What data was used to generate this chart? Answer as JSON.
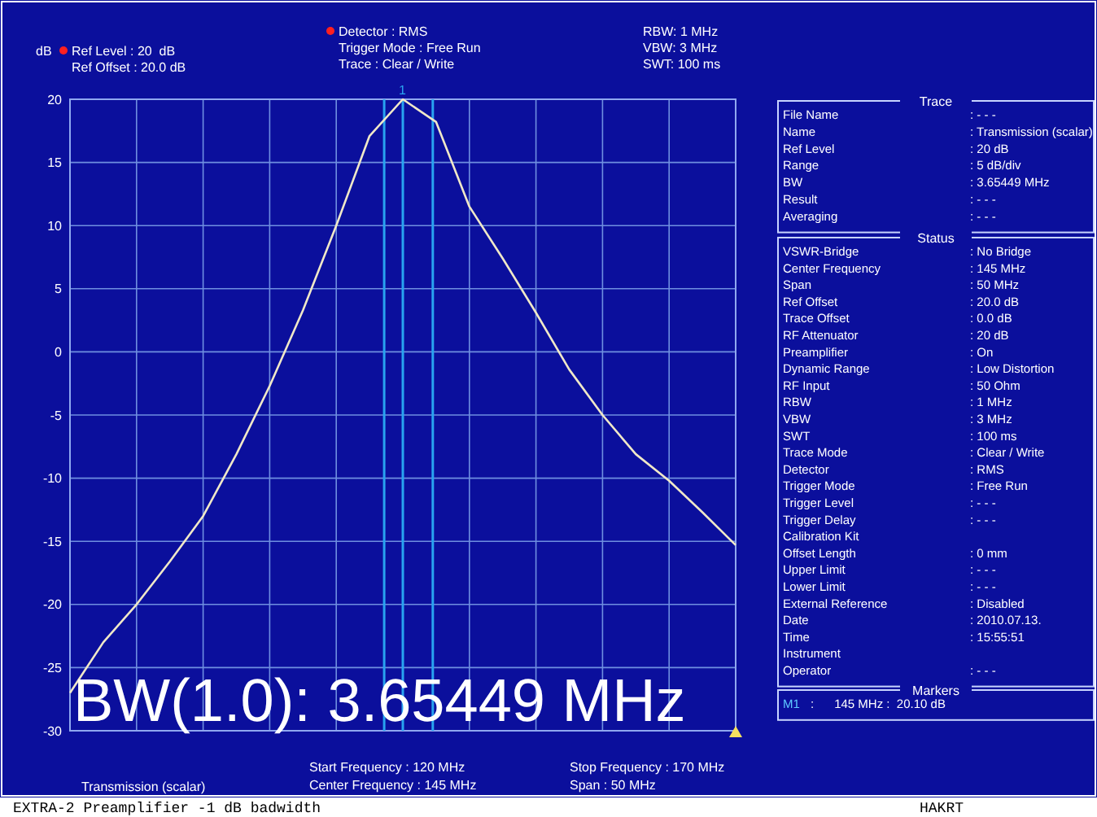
{
  "chart_data": [
    {
      "type": "line",
      "ylabel": "dB",
      "ylim": [
        -30,
        20
      ],
      "categories": [
        null,
        null,
        null,
        null,
        null,
        null,
        null,
        null,
        null,
        null,
        null,
        null,
        null,
        null,
        null,
        null,
        null,
        null,
        null,
        null,
        null
      ],
      "yticks": [
        -30,
        -25,
        -20,
        -15,
        -10,
        -5,
        0,
        5,
        10,
        15,
        20
      ],
      "tick_labels": "y",
      "grid": true,
      "series": [
        {
          "color": "#f0e8c8",
          "values": [
            -27,
            -23,
            -20,
            -16.6,
            -13,
            -8.1,
            -2.7,
            3.3,
            10,
            17.1,
            20,
            18.2,
            11.5,
            7.4,
            3.1,
            -1.4,
            -5,
            -8.1,
            -10.2,
            -12.7,
            -15.3
          ]
        }
      ],
      "annotations": [
        "Ref Level : 20  dB",
        "Ref Offset : 20.0 dB",
        "Detector : RMS",
        "Trigger Mode : Free Run",
        "Trace : Clear / Write",
        "RBW: 1 MHz",
        "VBW: 3 MHz",
        "SWT: 100 ms",
        "Transmission (scalar)",
        "Start Frequency : 120 MHz",
        "Center Frequency : 145 MHz",
        "Stop Frequency : 170 MHz",
        "Span : 50 MHz",
        "BW(1.0): 3.65449 MHz",
        "EXTRA-2 Preamplifier -1 dB badwidth",
        "HAKRT",
        "1"
      ]
    },
    {
      "type": "other",
      "title": "Trace",
      "categories": [
        "File Name",
        "Name",
        "Ref Level",
        "Range",
        "BW",
        "Result",
        "Averaging"
      ],
      "value_labels": [
        ": - - -",
        ": Transmission (scalar)",
        ": 20 dB",
        ": 5 dB/div",
        ": 3.65449 MHz",
        ": - - -",
        ": - - -"
      ]
    },
    {
      "type": "other",
      "title": "Status",
      "categories": [
        "VSWR-Bridge",
        "Center Frequency",
        "Span",
        "Ref Offset",
        "Trace Offset",
        "RF Attenuator",
        "Preamplifier",
        "Dynamic Range",
        "RF Input",
        "RBW",
        "VBW",
        "SWT",
        "Trace Mode",
        "Detector",
        "Trigger Mode",
        "Trigger Level",
        "Trigger Delay",
        "Calibration Kit",
        "Offset Length",
        "Upper Limit",
        "Lower Limit",
        "External Reference",
        "Date",
        "Time",
        "Instrument",
        "Operator"
      ],
      "value_labels": [
        ": No Bridge",
        ": 145 MHz",
        ": 50 MHz",
        ": 20.0 dB",
        ": 0.0 dB",
        ": 20 dB",
        ": On",
        ": Low Distortion",
        ": 50 Ohm",
        ": 1 MHz",
        ": 3 MHz",
        ": 100 ms",
        ": Clear / Write",
        ": RMS",
        ": Free Run",
        ": - - -",
        ": - - -",
        null,
        ": 0 mm",
        ": - - -",
        ": - - -",
        ": Disabled",
        ": 2010.07.13.",
        ": 15:55:51",
        null,
        ": - - -"
      ]
    },
    {
      "type": "other",
      "title": "Markers",
      "categories": [
        "M1"
      ],
      "value_labels": [
        ":      145 MHz :  20.10 dB"
      ]
    }
  ]
}
